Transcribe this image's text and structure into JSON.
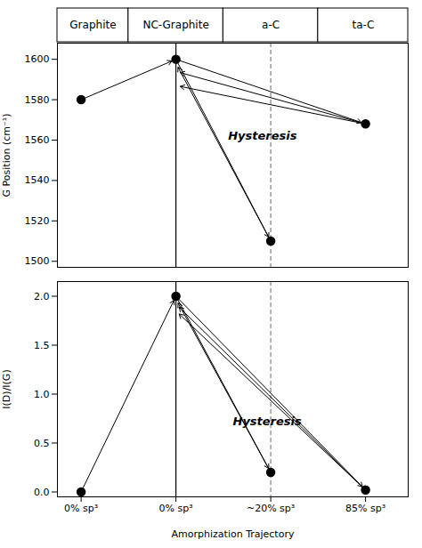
{
  "chart_data": [
    {
      "type": "scatter",
      "categories": [
        "Graphite",
        "NC-Graphite",
        "a-C",
        "ta-C"
      ],
      "x": [
        0,
        1,
        2,
        3
      ],
      "values": [
        1580,
        1600,
        1510,
        1568
      ],
      "color": "#000000",
      "marker": "circle",
      "xlim": [
        -0.25,
        3.45
      ],
      "ylabel": "G Position (cm⁻¹)",
      "ylim": [
        1497,
        1608
      ],
      "yticks": [
        1500,
        1520,
        1540,
        1560,
        1580,
        1600
      ],
      "tick_labels": "y",
      "vlines": [
        {
          "x": 1,
          "line_style": "solid"
        },
        {
          "x": 2,
          "line_style": "dashed"
        }
      ],
      "arrows": [
        {
          "x1": 0,
          "y1": 1580,
          "x2": 1,
          "y2": 1600
        },
        {
          "x1": 1,
          "y1": 1600,
          "x2": 2,
          "y2": 1510
        },
        {
          "x1": 1,
          "y1": 1600,
          "x2": 3,
          "y2": 1568
        },
        {
          "x1": 2,
          "y1": 1510,
          "x2": 1,
          "y2": 1598
        },
        {
          "x1": 3,
          "y1": 1568,
          "x2": 1,
          "y2": 1594
        },
        {
          "x1": 3,
          "y1": 1568,
          "x2": 1,
          "y2": 1587
        }
      ],
      "annotations": [
        {
          "text": "Hysteresis",
          "x": 1.55,
          "y": 1562
        }
      ]
    },
    {
      "type": "scatter",
      "x": [
        0,
        1,
        2,
        3
      ],
      "values": [
        0.0,
        2.0,
        0.2,
        0.02
      ],
      "color": "#000000",
      "marker": "circle",
      "xlim": [
        -0.25,
        3.45
      ],
      "xticks": [
        {
          "value": 0,
          "label": "0% sp³"
        },
        {
          "value": 1,
          "label": "0% sp³"
        },
        {
          "value": 2,
          "label": "~20% sp³"
        },
        {
          "value": 3,
          "label": "85% sp³"
        }
      ],
      "xlabel": "Amorphization Trajectory",
      "ylabel": "I(D)/I(G)",
      "ylim": [
        -0.05,
        2.15
      ],
      "yticks": [
        {
          "value": 0.0,
          "label": "0.0"
        },
        {
          "value": 0.5,
          "label": "0.5"
        },
        {
          "value": 1.0,
          "label": "1.0"
        },
        {
          "value": 1.5,
          "label": "1.5"
        },
        {
          "value": 2.0,
          "label": "2.0"
        }
      ],
      "vlines": [
        {
          "x": 1,
          "line_style": "solid"
        },
        {
          "x": 2,
          "line_style": "dashed"
        }
      ],
      "arrows": [
        {
          "x1": 0,
          "y1": 0.0,
          "x2": 1,
          "y2": 2.0
        },
        {
          "x1": 1,
          "y1": 2.0,
          "x2": 2,
          "y2": 0.2
        },
        {
          "x1": 1,
          "y1": 2.0,
          "x2": 3,
          "y2": 0.02
        },
        {
          "x1": 2,
          "y1": 0.2,
          "x2": 1,
          "y2": 1.97
        },
        {
          "x1": 3,
          "y1": 0.02,
          "x2": 1,
          "y2": 1.92
        },
        {
          "x1": 3,
          "y1": 0.02,
          "x2": 1,
          "y2": 1.85
        }
      ],
      "annotations": [
        {
          "text": "Hysteresis",
          "x": 1.6,
          "y": 0.72
        }
      ]
    }
  ]
}
